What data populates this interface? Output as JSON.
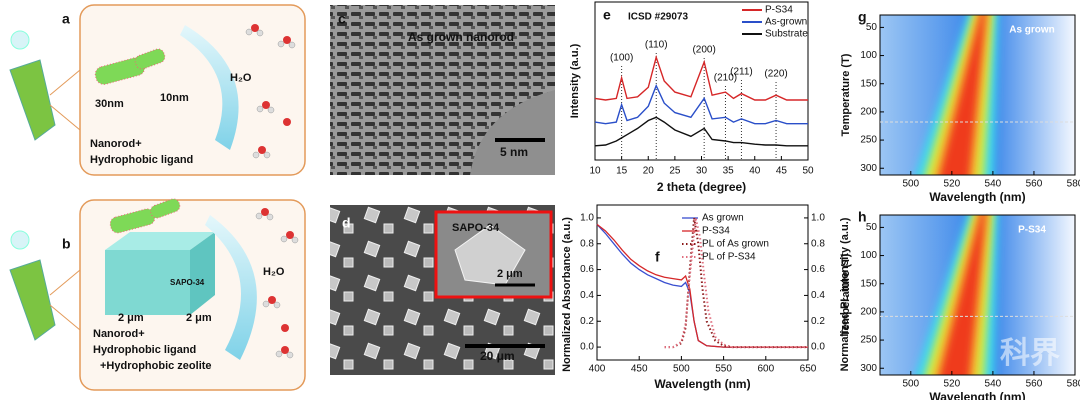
{
  "panel_a": {
    "label": "a",
    "water": "H₂O",
    "length": "30nm",
    "width": "10nm",
    "caption": [
      "Nanorod+",
      "Hydrophobic ligand"
    ]
  },
  "panel_b": {
    "label": "b",
    "zeolite": "SAPO-34",
    "edge_1": "2 μm",
    "edge_2": "2 μm",
    "water": "H₂O",
    "caption": [
      "Nanorod+",
      "Hydrophobic ligand",
      "+Hydrophobic zeolite"
    ]
  },
  "panel_c": {
    "label": "c",
    "caption": "As grown nanorod",
    "scale_bar": "5 nm"
  },
  "panel_d": {
    "label": "d",
    "inset_caption": "SAPO-34",
    "inset_scale_bar": "2 μm",
    "scale_bar": "20 μm"
  },
  "panel_e": {
    "label": "e",
    "type": "line",
    "annotation": "ICSD #29073",
    "x_label": "2 theta (degree)",
    "y_label": "Intensity (a.u.)",
    "xlim": [
      10,
      50
    ],
    "xticks": [
      10,
      15,
      20,
      25,
      30,
      35,
      40,
      45,
      50
    ],
    "ylim": [
      0,
      10
    ],
    "peaks": [
      {
        "label": "(100)",
        "x": 15
      },
      {
        "label": "(110)",
        "x": 21.5
      },
      {
        "label": "(200)",
        "x": 30.5
      },
      {
        "label": "(210)",
        "x": 34.5
      },
      {
        "label": "(211)",
        "x": 37.5
      },
      {
        "label": "(220)",
        "x": 44
      }
    ],
    "x": [
      10,
      12,
      14,
      15,
      16,
      18,
      20,
      21.5,
      23,
      25,
      28,
      30.5,
      32,
      34.5,
      36,
      37.5,
      40,
      42,
      44,
      46,
      48,
      50
    ],
    "series": [
      {
        "name": "P-S34",
        "color": "#d62728",
        "values": [
          3.9,
          3.8,
          3.9,
          5.2,
          3.9,
          4.0,
          4.6,
          6.5,
          5.0,
          4.3,
          4.0,
          6.2,
          4.1,
          4.3,
          3.9,
          4.2,
          3.8,
          3.8,
          4.1,
          3.8,
          3.8,
          3.8
        ]
      },
      {
        "name": "As-grown",
        "color": "#2a4fc9",
        "values": [
          2.4,
          2.3,
          2.4,
          3.5,
          2.5,
          2.7,
          3.4,
          4.7,
          3.6,
          3.0,
          2.7,
          3.9,
          2.6,
          2.7,
          2.4,
          2.6,
          2.3,
          2.3,
          2.5,
          2.3,
          2.3,
          2.3
        ]
      },
      {
        "name": "Substrate",
        "color": "#111111",
        "values": [
          0.9,
          0.95,
          1.2,
          1.4,
          1.6,
          2.0,
          2.5,
          2.7,
          2.4,
          1.9,
          1.5,
          2.0,
          1.3,
          1.2,
          1.1,
          1.1,
          1.0,
          0.95,
          0.95,
          0.9,
          0.9,
          0.9
        ]
      }
    ]
  },
  "panel_f": {
    "label": "f",
    "type": "line",
    "x_label": "Wavelength (nm)",
    "y_label": "Normalized Absorbance (a.u.)",
    "y2_label": "Normalized PL intensity (a.u.)",
    "xlim": [
      400,
      650
    ],
    "xticks": [
      400,
      450,
      500,
      550,
      600,
      650
    ],
    "ylim": [
      -0.1,
      1.1
    ],
    "yticks": [
      {
        "value": 0,
        "label": "0.0"
      },
      0.2,
      0.4,
      0.6,
      0.8,
      {
        "value": 1,
        "label": "1.0"
      }
    ],
    "y2lim": [
      -0.1,
      1.1
    ],
    "y2ticks": [
      {
        "value": 0,
        "label": "0.0"
      },
      0.2,
      0.4,
      0.6,
      0.8,
      {
        "value": 1,
        "label": "1.0"
      }
    ],
    "series": [
      {
        "name": "As grown",
        "color": "#3a4fd0",
        "x": [
          400,
          410,
          420,
          430,
          440,
          450,
          460,
          470,
          480,
          490,
          500,
          505,
          510,
          515,
          520,
          530,
          550,
          650
        ],
        "values": [
          0.95,
          0.88,
          0.8,
          0.72,
          0.65,
          0.6,
          0.56,
          0.53,
          0.5,
          0.48,
          0.47,
          0.5,
          0.42,
          0.2,
          0.05,
          0.01,
          0,
          0
        ]
      },
      {
        "name": "P-S34",
        "color": "#d62728",
        "x": [
          400,
          410,
          420,
          430,
          440,
          450,
          460,
          470,
          480,
          490,
          500,
          505,
          510,
          515,
          520,
          530,
          550,
          650
        ],
        "values": [
          0.95,
          0.9,
          0.83,
          0.75,
          0.68,
          0.63,
          0.59,
          0.56,
          0.54,
          0.53,
          0.52,
          0.55,
          0.45,
          0.2,
          0.05,
          0.01,
          0,
          0
        ]
      },
      {
        "name": "PL of As grown",
        "color": "#8b1a1a",
        "axis": "y2",
        "x": [
          480,
          490,
          500,
          505,
          510,
          515,
          520,
          525,
          530,
          540,
          550,
          560,
          650
        ],
        "values": [
          0,
          0,
          0.03,
          0.15,
          0.6,
          1.0,
          0.8,
          0.45,
          0.2,
          0.05,
          0.01,
          0,
          0
        ]
      },
      {
        "name": "PL of P-S34",
        "color": "#e07080",
        "axis": "y2",
        "x": [
          480,
          490,
          500,
          505,
          510,
          517,
          522,
          527,
          532,
          540,
          550,
          560,
          650
        ],
        "values": [
          0,
          0,
          0.04,
          0.18,
          0.55,
          1.0,
          0.85,
          0.55,
          0.28,
          0.08,
          0.02,
          0,
          0
        ]
      }
    ]
  },
  "panel_g": {
    "label": "g",
    "type": "heatmap",
    "caption": "As grown",
    "x_label": "Wavelength (nm)",
    "y_label": "Temperature (T)",
    "xlim": [
      485,
      580
    ],
    "xticks": [
      500,
      520,
      540,
      560,
      580
    ],
    "ylim": [
      28,
      312
    ],
    "yticks": [
      50,
      100,
      150,
      200,
      250,
      300
    ],
    "marker_T": 218
  },
  "panel_h": {
    "label": "h",
    "type": "heatmap",
    "caption": "P-S34",
    "x_label": "Wavelength (nm)",
    "y_label": "Temperature (T)",
    "xlim": [
      485,
      580
    ],
    "xticks": [
      500,
      520,
      540,
      560,
      580
    ],
    "ylim": [
      28,
      312
    ],
    "yticks": [
      50,
      100,
      150,
      200,
      250,
      300
    ],
    "marker_T": 208
  },
  "watermark": "科界"
}
